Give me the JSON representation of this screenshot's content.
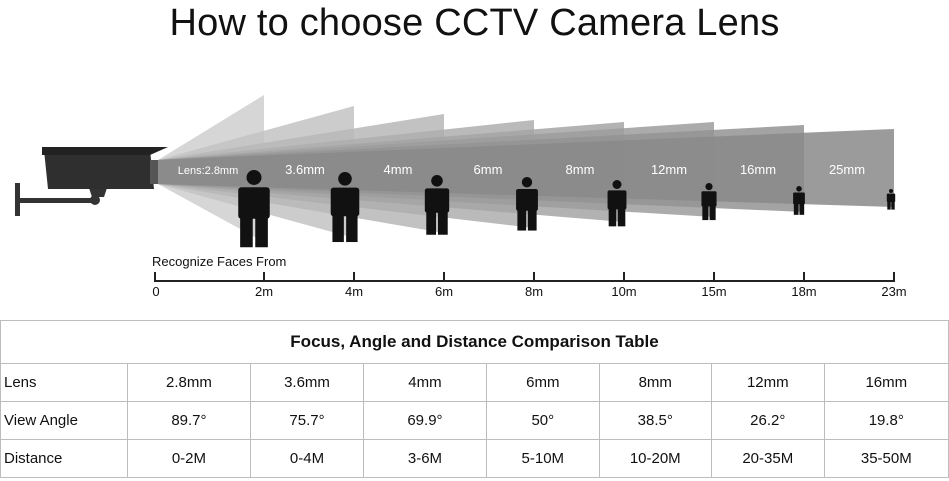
{
  "title": "How to choose CCTV Camera Lens",
  "diagram": {
    "lens_labels": [
      "Lens:2.8mm",
      "3.6mm",
      "4mm",
      "6mm",
      "8mm",
      "12mm",
      "16mm",
      "25mm"
    ],
    "axis_caption": "Recognize Faces From",
    "distance_ticks": [
      "0",
      "2m",
      "4m",
      "6m",
      "8m",
      "10m",
      "15m",
      "18m",
      "23m"
    ]
  },
  "table": {
    "caption": "Focus, Angle and Distance Comparison Table",
    "rows": [
      {
        "label": "Lens",
        "values": [
          "2.8mm",
          "3.6mm",
          "4mm",
          "6mm",
          "8mm",
          "12mm",
          "16mm"
        ]
      },
      {
        "label": "View Angle",
        "values": [
          "89.7°",
          "75.7°",
          "69.9°",
          "50°",
          "38.5°",
          "26.2°",
          "19.8°"
        ]
      },
      {
        "label": "Distance",
        "values": [
          "0-2M",
          "0-4M",
          "3-6M",
          "5-10M",
          "10-20M",
          "20-35M",
          "35-50M"
        ]
      }
    ]
  }
}
